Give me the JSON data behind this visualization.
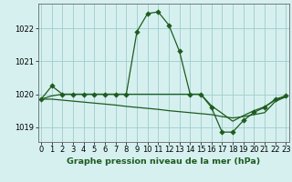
{
  "title": "Graphe pression niveau de la mer (hPa)",
  "background_color": "#d6f0f0",
  "plot_bg_color": "#d6f0f0",
  "grid_color": "#a0cccc",
  "line_color": "#1e5c1e",
  "marker_color": "#1e5c1e",
  "ylim": [
    1018.55,
    1022.75
  ],
  "xlim": [
    -0.3,
    23.3
  ],
  "yticks": [
    1019,
    1020,
    1021,
    1022
  ],
  "xticks": [
    0,
    1,
    2,
    3,
    4,
    5,
    6,
    7,
    8,
    9,
    10,
    11,
    12,
    13,
    14,
    15,
    16,
    17,
    18,
    19,
    20,
    21,
    22,
    23
  ],
  "series1_x": [
    0,
    1,
    2,
    3,
    4,
    5,
    6,
    7,
    8,
    9,
    10,
    11,
    12,
    13,
    14,
    15,
    16,
    17,
    18,
    19,
    20,
    21,
    22,
    23
  ],
  "series1_y": [
    1019.85,
    1020.25,
    1020.0,
    1020.0,
    1020.0,
    1020.0,
    1020.0,
    1020.0,
    1020.0,
    1021.9,
    1022.45,
    1022.5,
    1022.1,
    1021.3,
    1020.0,
    1020.0,
    1019.6,
    1018.85,
    1018.85,
    1019.2,
    1019.45,
    1019.6,
    1019.85,
    1019.95
  ],
  "series2_x": [
    0,
    1,
    2,
    3,
    4,
    5,
    6,
    7,
    8,
    9,
    10,
    11,
    12,
    13,
    14,
    15,
    16,
    17,
    18,
    19,
    20,
    21,
    22,
    23
  ],
  "series2_y": [
    1019.85,
    1019.85,
    1019.82,
    1019.79,
    1019.76,
    1019.73,
    1019.7,
    1019.67,
    1019.63,
    1019.6,
    1019.57,
    1019.54,
    1019.5,
    1019.47,
    1019.44,
    1019.41,
    1019.38,
    1019.32,
    1019.28,
    1019.32,
    1019.38,
    1019.44,
    1019.78,
    1019.92
  ],
  "series3_x": [
    0,
    1,
    2,
    3,
    4,
    5,
    6,
    7,
    8,
    9,
    10,
    11,
    12,
    13,
    14,
    15,
    16,
    17,
    18,
    19,
    20,
    21,
    22,
    23
  ],
  "series3_y": [
    1019.85,
    1019.95,
    1020.0,
    1020.0,
    1020.0,
    1020.0,
    1020.0,
    1020.0,
    1020.0,
    1020.0,
    1020.0,
    1020.0,
    1020.0,
    1020.0,
    1020.0,
    1020.0,
    1019.65,
    1019.42,
    1019.18,
    1019.35,
    1019.5,
    1019.62,
    1019.82,
    1019.93
  ],
  "title_fontsize": 6.8,
  "tick_fontsize": 6.0
}
